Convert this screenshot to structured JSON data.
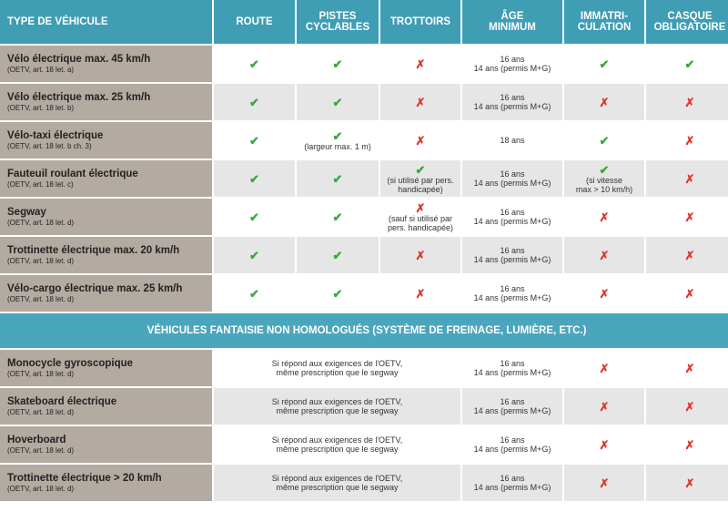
{
  "mark_colors": {
    "✔": "#3ea63e",
    "✗": "#e0332a"
  },
  "header": {
    "columns": [
      [
        "TYPE DE VÉHICULE"
      ],
      [
        "ROUTE"
      ],
      [
        "PISTES",
        "CYCLABLES"
      ],
      [
        "TROTTOIRS"
      ],
      [
        "ÂGE",
        "MINIMUM"
      ],
      [
        "IMMATRI-",
        "CULATION"
      ],
      [
        "CASQUE",
        "OBLIGATOIRE"
      ]
    ]
  },
  "groups": [
    {
      "rows": [
        {
          "name": "Vélo électrique max. 45 km/h",
          "ref": "(OETV, art. 18 let. a)",
          "cells": [
            {
              "mark": "✔"
            },
            {
              "mark": "✔"
            },
            {
              "mark": "✗"
            },
            {
              "lines": [
                "16 ans",
                "14 ans (permis M+G)"
              ]
            },
            {
              "mark": "✔"
            },
            {
              "mark": "✔"
            }
          ]
        },
        {
          "name": "Vélo électrique max. 25 km/h",
          "ref": "(OETV, art. 18 let. b)",
          "cells": [
            {
              "mark": "✔"
            },
            {
              "mark": "✔"
            },
            {
              "mark": "✗"
            },
            {
              "lines": [
                "16 ans",
                "14 ans (permis M+G)"
              ]
            },
            {
              "mark": "✗"
            },
            {
              "mark": "✗"
            }
          ]
        },
        {
          "name": "Vélo-taxi électrique",
          "ref": "(OETV, art. 18 let. b ch. 3)",
          "cells": [
            {
              "mark": "✔"
            },
            {
              "mark": "✔",
              "lines": [
                "(largeur max. 1 m)"
              ]
            },
            {
              "mark": "✗"
            },
            {
              "lines": [
                "18 ans"
              ]
            },
            {
              "mark": "✔"
            },
            {
              "mark": "✗"
            }
          ]
        },
        {
          "name": "Fauteuil roulant électrique",
          "ref": "(OETV, art. 18 let. c)",
          "cells": [
            {
              "mark": "✔"
            },
            {
              "mark": "✔"
            },
            {
              "mark": "✔",
              "lines": [
                "(si utilisé par pers.",
                "handicapée)"
              ]
            },
            {
              "lines": [
                "16 ans",
                "14 ans (permis M+G)"
              ]
            },
            {
              "mark": "✔",
              "lines": [
                "(si vitesse",
                "max > 10 km/h)"
              ]
            },
            {
              "mark": "✗"
            }
          ]
        },
        {
          "name": "Segway",
          "ref": "(OETV, art. 18 let. d)",
          "cells": [
            {
              "mark": "✔"
            },
            {
              "mark": "✔"
            },
            {
              "mark": "✗",
              "lines": [
                "(sauf si utilisé par",
                "pers. handicapée)"
              ]
            },
            {
              "lines": [
                "16 ans",
                "14 ans (permis M+G)"
              ]
            },
            {
              "mark": "✗"
            },
            {
              "mark": "✗"
            }
          ]
        },
        {
          "name": "Trottinette électrique max. 20 km/h",
          "ref": "(OETV, art. 18 let. d)",
          "cells": [
            {
              "mark": "✔"
            },
            {
              "mark": "✔"
            },
            {
              "mark": "✗"
            },
            {
              "lines": [
                "16 ans",
                "14 ans (permis M+G)"
              ]
            },
            {
              "mark": "✗"
            },
            {
              "mark": "✗"
            }
          ]
        },
        {
          "name": "Vélo-cargo électrique max. 25 km/h",
          "ref": "(OETV, art. 18 let. d)",
          "cells": [
            {
              "mark": "✔"
            },
            {
              "mark": "✔"
            },
            {
              "mark": "✗"
            },
            {
              "lines": [
                "16 ans",
                "14 ans (permis M+G)"
              ]
            },
            {
              "mark": "✗"
            },
            {
              "mark": "✗"
            }
          ]
        }
      ]
    },
    {
      "title": "VÉHICULES FANTAISIE NON HOMOLOGUÉS (SYSTÈME DE FREINAGE, LUMIÈRE, ETC.)",
      "rows": [
        {
          "name": "Monocycle gyroscopique",
          "ref": "(OETV, art. 18 let. d)",
          "cells": [
            {
              "lines": [
                "Si répond aux exigences de l'OETV,",
                "même prescription que le segway"
              ]
            },
            {
              "lines": [
                "16 ans",
                "14 ans (permis M+G)"
              ]
            },
            {
              "mark": "✗"
            },
            {
              "mark": "✗"
            }
          ]
        },
        {
          "name": "Skateboard électrique",
          "ref": "(OETV, art. 18 let. d)",
          "cells": [
            {
              "lines": [
                "Si répond aux exigences de l'OETV,",
                "même prescription que le segway"
              ]
            },
            {
              "lines": [
                "16 ans",
                "14 ans (permis M+G)"
              ]
            },
            {
              "mark": "✗"
            },
            {
              "mark": "✗"
            }
          ]
        },
        {
          "name": "Hoverboard",
          "ref": "(OETV, art. 18 let. d)",
          "cells": [
            {
              "lines": [
                "Si répond aux exigences de l'OETV,",
                "même prescription que le segway"
              ]
            },
            {
              "lines": [
                "16 ans",
                "14 ans (permis M+G)"
              ]
            },
            {
              "mark": "✗"
            },
            {
              "mark": "✗"
            }
          ]
        },
        {
          "name": "Trottinette électrique > 20 km/h",
          "ref": "(OETV, art. 18 let. d)",
          "cells": [
            {
              "lines": [
                "Si répond aux exigences de l'OETV,",
                "même prescription que le segway"
              ]
            },
            {
              "lines": [
                "16 ans",
                "14 ans (permis M+G)"
              ]
            },
            {
              "mark": "✗"
            },
            {
              "mark": "✗"
            }
          ]
        }
      ]
    }
  ]
}
